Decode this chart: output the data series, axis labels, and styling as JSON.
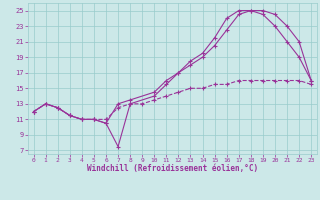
{
  "xlabel": "Windchill (Refroidissement éolien,°C)",
  "bg_color": "#cce8e8",
  "grid_color": "#99cccc",
  "line_color": "#993399",
  "xmin": -0.5,
  "xmax": 23.5,
  "ymin": 6.5,
  "ymax": 26,
  "yticks": [
    7,
    9,
    11,
    13,
    15,
    17,
    19,
    21,
    23,
    25
  ],
  "xticks": [
    0,
    1,
    2,
    3,
    4,
    5,
    6,
    7,
    8,
    9,
    10,
    11,
    12,
    13,
    14,
    15,
    16,
    17,
    18,
    19,
    20,
    21,
    22,
    23
  ],
  "line1_x": [
    0,
    1,
    2,
    3,
    4,
    5,
    6,
    7,
    8,
    10,
    11,
    12,
    13,
    14,
    15,
    16,
    17,
    18,
    19,
    20,
    21,
    22,
    23
  ],
  "line1_y": [
    12,
    13,
    12.5,
    11.5,
    11,
    11,
    10.5,
    7.5,
    13,
    14,
    15.5,
    17,
    18.5,
    19.5,
    21.5,
    24,
    25,
    25,
    24.5,
    23,
    21,
    19,
    16
  ],
  "line2_x": [
    0,
    1,
    2,
    3,
    4,
    5,
    6,
    7,
    8,
    10,
    11,
    12,
    13,
    14,
    15,
    16,
    17,
    18,
    19,
    20,
    21,
    22,
    23
  ],
  "line2_y": [
    12,
    13,
    12.5,
    11.5,
    11,
    11,
    10.5,
    13,
    13.5,
    14.5,
    16,
    17,
    18,
    19,
    20.5,
    22.5,
    24.5,
    25,
    25,
    24.5,
    23,
    21,
    16
  ],
  "line3_x": [
    0,
    1,
    2,
    3,
    4,
    5,
    6,
    7,
    8,
    9,
    10,
    11,
    12,
    13,
    14,
    15,
    16,
    17,
    18,
    19,
    20,
    21,
    22,
    23
  ],
  "line3_y": [
    12,
    13,
    12.5,
    11.5,
    11,
    11,
    11,
    12.5,
    13,
    13,
    13.5,
    14,
    14.5,
    15,
    15,
    15.5,
    15.5,
    16,
    16,
    16,
    16,
    16,
    16,
    15.5
  ]
}
